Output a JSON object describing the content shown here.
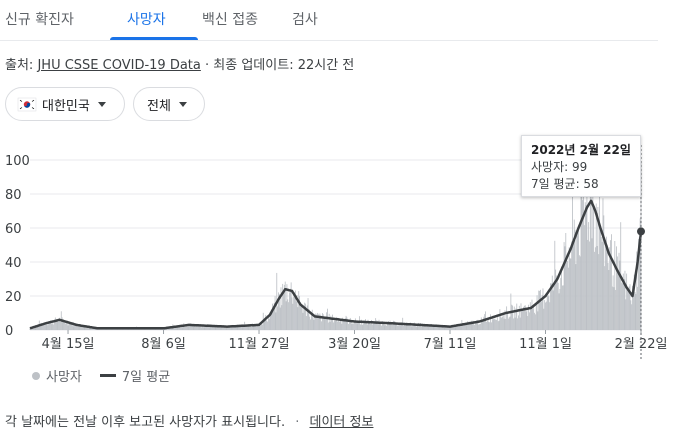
{
  "tabs": [
    {
      "label": "신규 확진자"
    },
    {
      "label": "사망자"
    },
    {
      "label": "백신 접종"
    },
    {
      "label": "검사"
    }
  ],
  "active_tab": 1,
  "source": {
    "prefix": "출처:",
    "link": "JHU CSSE COVID-19 Data",
    "separator": "·",
    "updated": "최종 업데이트: 22시간 전"
  },
  "filters": {
    "region": "대한민국",
    "scope": "전체"
  },
  "tooltip": {
    "date": "2022년 2월 22일",
    "deaths_label": "사망자: 99",
    "avg_label": "7일 평균: 58"
  },
  "legend": {
    "bars": "사망자",
    "line": "7일 평균"
  },
  "footer": {
    "note": "각 날짜에는 전날 이후 보고된 사망자가 표시됩니다.",
    "separator": "·",
    "link": "데이터 정보"
  },
  "colors": {
    "accent": "#1a73e8",
    "bars": "#bdc1c6",
    "line": "#3c4043"
  },
  "chart_data": {
    "type": "area",
    "ylim": [
      0,
      100
    ],
    "yticks": [
      0,
      20,
      40,
      60,
      80,
      100
    ],
    "grid": true,
    "xtick_labels": [
      "4월 15일",
      "8월 6일",
      "11월 27일",
      "3월 20일",
      "7월 11일",
      "11월 1일",
      "2월 22일"
    ],
    "series": [
      {
        "name": "7일 평균",
        "x": [
          "2020-03-01",
          "2020-03-20",
          "2020-04-05",
          "2020-04-25",
          "2020-05-20",
          "2020-07-01",
          "2020-08-06",
          "2020-09-05",
          "2020-10-20",
          "2020-11-27",
          "2020-12-10",
          "2020-12-20",
          "2020-12-28",
          "2021-01-05",
          "2021-01-15",
          "2021-02-01",
          "2021-03-20",
          "2021-05-01",
          "2021-07-11",
          "2021-08-15",
          "2021-09-15",
          "2021-10-15",
          "2021-11-01",
          "2021-11-15",
          "2021-12-01",
          "2021-12-10",
          "2021-12-20",
          "2021-12-25",
          "2021-12-30",
          "2022-01-05",
          "2022-01-15",
          "2022-01-25",
          "2022-02-05",
          "2022-02-12",
          "2022-02-18",
          "2022-02-22"
        ],
        "values": [
          1,
          4,
          6,
          3,
          1,
          1,
          1,
          3,
          2,
          3,
          9,
          18,
          24,
          23,
          15,
          8,
          5,
          4,
          2,
          5,
          10,
          13,
          20,
          30,
          48,
          60,
          72,
          76,
          70,
          60,
          45,
          35,
          25,
          20,
          40,
          58
        ]
      }
    ],
    "bars_name": "사망자",
    "highlight": {
      "date": "2022-02-22",
      "deaths": 99,
      "avg": 58
    }
  }
}
